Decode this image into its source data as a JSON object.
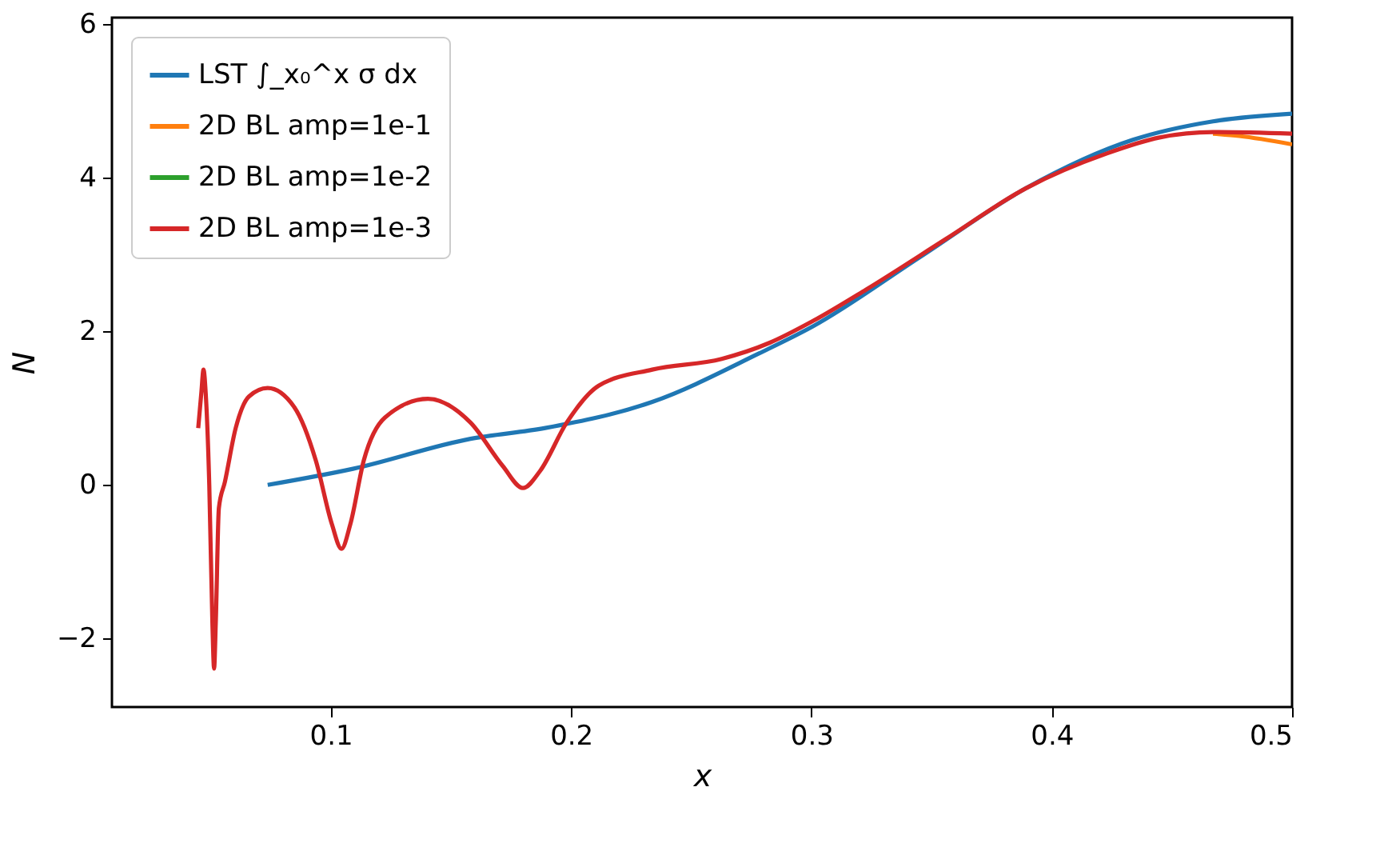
{
  "chart_data": {
    "type": "line",
    "xlabel": "x",
    "ylabel": "N",
    "xlim": [
      0.009,
      0.5
    ],
    "ylim": [
      -2.89,
      6.08
    ],
    "xticks": [
      0.1,
      0.2,
      0.3,
      0.4,
      0.5
    ],
    "yticks": [
      {
        "value": -2,
        "label": "−2"
      },
      0,
      2,
      4,
      6
    ],
    "grid": false,
    "legend": "top left",
    "marker": "none",
    "line_style": "solid",
    "series": [
      {
        "name": "LST ∫_x₀^x σ dx",
        "color": "#1f77b4",
        "x": [
          0.0738,
          0.1093,
          0.1582,
          0.1893,
          0.2338,
          0.2782,
          0.3005,
          0.345,
          0.3893,
          0.4338,
          0.4671,
          0.5
        ],
        "values": [
          0.0,
          0.21,
          0.6,
          0.74,
          1.08,
          1.71,
          2.06,
          2.96,
          3.86,
          4.49,
          4.73,
          4.83
        ]
      },
      {
        "name": "2D BL amp=1e-1",
        "color": "#ff7f0e",
        "x": [
          0.4671,
          0.478,
          0.5
        ],
        "values": [
          4.57,
          4.54,
          4.43
        ]
      },
      {
        "name": "2D BL amp=1e-2",
        "color": "#2ca02c"
      },
      {
        "name": "2D BL amp=1e-3",
        "color": "#d62728",
        "x": [
          0.0449,
          0.0462,
          0.0471,
          0.048,
          0.0495,
          0.0508,
          0.0515,
          0.0522,
          0.0535,
          0.056,
          0.0605,
          0.066,
          0.0738,
          0.0849,
          0.0938,
          0.1005,
          0.1045,
          0.1082,
          0.1138,
          0.1227,
          0.1405,
          0.1582,
          0.1715,
          0.18,
          0.1871,
          0.1982,
          0.2115,
          0.2338,
          0.2627,
          0.2827,
          0.3005,
          0.3227,
          0.356,
          0.3893,
          0.4227,
          0.4449,
          0.4671,
          0.5
        ],
        "values": [
          0.74,
          1.2,
          1.5,
          1.2,
          0.0,
          -1.8,
          -2.39,
          -1.8,
          -0.3,
          0.04,
          0.74,
          1.15,
          1.26,
          1.01,
          0.32,
          -0.51,
          -0.83,
          -0.51,
          0.32,
          0.88,
          1.12,
          0.81,
          0.25,
          -0.04,
          0.18,
          0.81,
          1.29,
          1.5,
          1.64,
          1.85,
          2.13,
          2.54,
          3.2,
          3.86,
          4.31,
          4.52,
          4.59,
          4.57
        ]
      }
    ]
  }
}
